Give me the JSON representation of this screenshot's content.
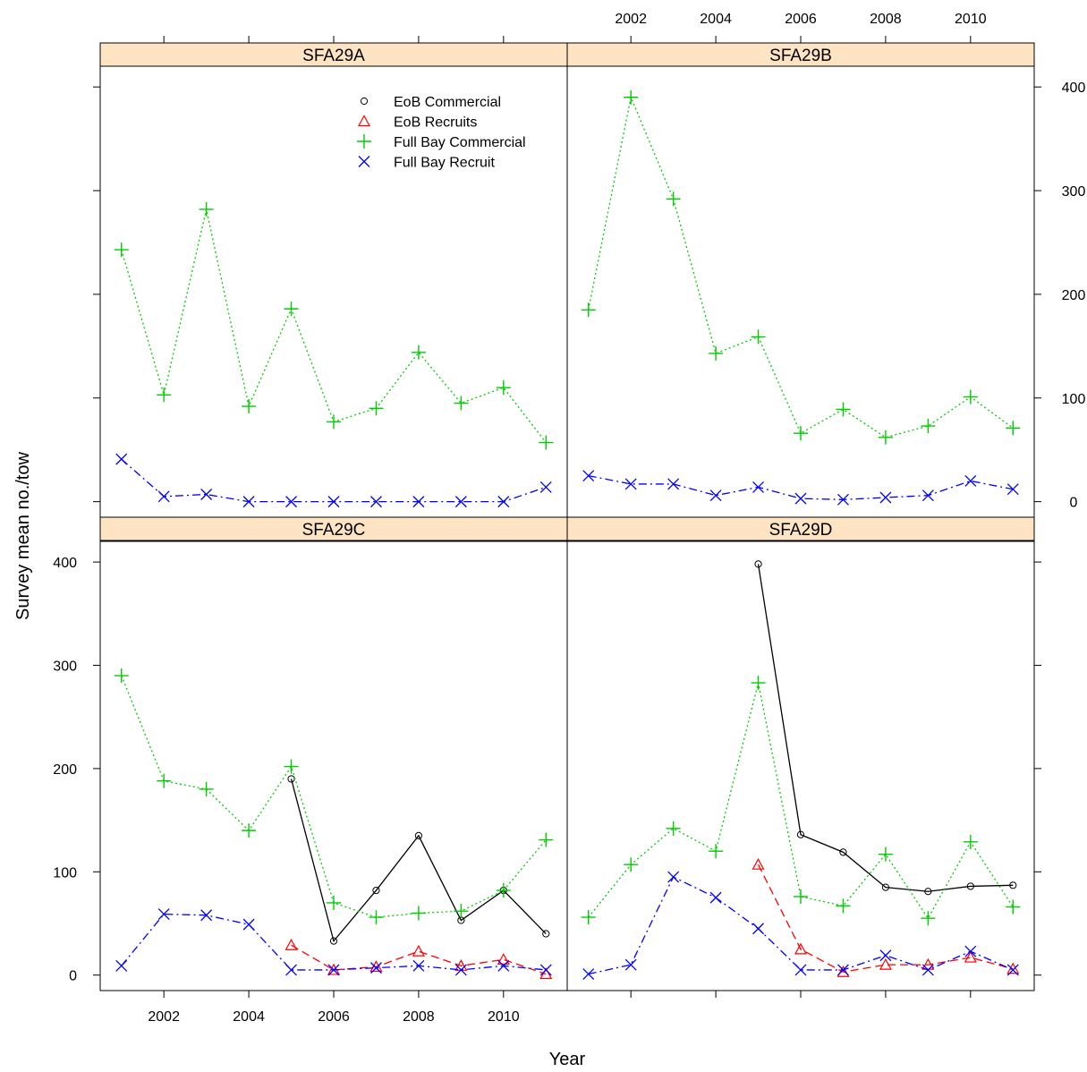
{
  "chart_data": {
    "type": "line",
    "layout": "lattice 2x2",
    "xlabel": "Year",
    "ylabel": "Survey mean no./tow",
    "xlim": [
      2000.5,
      2011.5
    ],
    "ylim": [
      -15,
      420
    ],
    "x_ticks": [
      2002,
      2004,
      2006,
      2008,
      2010
    ],
    "y_ticks": [
      0,
      100,
      200,
      300,
      400
    ],
    "grid": false,
    "strip_color": "#ffe4c4",
    "legend": {
      "placement": "inside top of SFA29A panel",
      "entries": [
        {
          "key": "eob_com",
          "label": "EoB Commercial",
          "color": "#000000",
          "marker": "circle",
          "line": "solid"
        },
        {
          "key": "eob_rec",
          "label": "EoB Recruits",
          "color": "#ff0000",
          "marker": "triangle",
          "line": "dashed"
        },
        {
          "key": "fb_com",
          "label": "Full Bay Commercial",
          "color": "#00cc00",
          "marker": "plus",
          "line": "dotted"
        },
        {
          "key": "fb_rec",
          "label": "Full Bay Recruit",
          "color": "#0000ff",
          "marker": "x",
          "line": "dotdash"
        }
      ]
    },
    "panels": [
      {
        "id": "SFA29A",
        "title": "SFA29A",
        "series": {
          "eob_com": {
            "x": [],
            "y": []
          },
          "eob_rec": {
            "x": [],
            "y": []
          },
          "fb_com": {
            "x": [
              2001,
              2002,
              2003,
              2004,
              2005,
              2006,
              2007,
              2008,
              2009,
              2010,
              2011
            ],
            "y": [
              243,
              103,
              282,
              92,
              186,
              77,
              90,
              144,
              95,
              110,
              57
            ]
          },
          "fb_rec": {
            "x": [
              2001,
              2002,
              2003,
              2004,
              2005,
              2006,
              2007,
              2008,
              2009,
              2010,
              2011
            ],
            "y": [
              41,
              5,
              7,
              0,
              0,
              0,
              0,
              0,
              0,
              0,
              14
            ]
          }
        }
      },
      {
        "id": "SFA29B",
        "title": "SFA29B",
        "series": {
          "eob_com": {
            "x": [],
            "y": []
          },
          "eob_rec": {
            "x": [],
            "y": []
          },
          "fb_com": {
            "x": [
              2001,
              2002,
              2003,
              2004,
              2005,
              2006,
              2007,
              2008,
              2009,
              2010,
              2011
            ],
            "y": [
              185,
              390,
              292,
              143,
              159,
              66,
              89,
              62,
              73,
              101,
              71
            ]
          },
          "fb_rec": {
            "x": [
              2001,
              2002,
              2003,
              2004,
              2005,
              2006,
              2007,
              2008,
              2009,
              2010,
              2011
            ],
            "y": [
              25,
              17,
              17,
              6,
              14,
              3,
              2,
              4,
              6,
              20,
              12
            ]
          }
        }
      },
      {
        "id": "SFA29C",
        "title": "SFA29C",
        "series": {
          "eob_com": {
            "x": [
              2005,
              2006,
              2007,
              2008,
              2009,
              2010,
              2011
            ],
            "y": [
              190,
              33,
              82,
              135,
              53,
              82,
              40
            ]
          },
          "eob_rec": {
            "x": [
              2005,
              2006,
              2007,
              2008,
              2009,
              2010,
              2011
            ],
            "y": [
              29,
              5,
              8,
              23,
              9,
              15,
              1
            ]
          },
          "fb_com": {
            "x": [
              2001,
              2002,
              2003,
              2004,
              2005,
              2006,
              2007,
              2008,
              2009,
              2010,
              2011
            ],
            "y": [
              290,
              188,
              180,
              140,
              202,
              70,
              56,
              60,
              62,
              82,
              131
            ]
          },
          "fb_rec": {
            "x": [
              2001,
              2002,
              2003,
              2004,
              2005,
              2006,
              2007,
              2008,
              2009,
              2010,
              2011
            ],
            "y": [
              9,
              59,
              58,
              49,
              5,
              5,
              7,
              9,
              5,
              9,
              5
            ]
          }
        }
      },
      {
        "id": "SFA29D",
        "title": "SFA29D",
        "series": {
          "eob_com": {
            "x": [
              2005,
              2006,
              2007,
              2008,
              2009,
              2010,
              2011
            ],
            "y": [
              398,
              136,
              119,
              85,
              81,
              86,
              87
            ]
          },
          "eob_rec": {
            "x": [
              2005,
              2006,
              2007,
              2008,
              2009,
              2010,
              2011
            ],
            "y": [
              107,
              25,
              3,
              10,
              10,
              17,
              6
            ]
          },
          "fb_com": {
            "x": [
              2001,
              2002,
              2003,
              2004,
              2005,
              2006,
              2007,
              2008,
              2009,
              2010,
              2011
            ],
            "y": [
              56,
              107,
              142,
              120,
              283,
              76,
              67,
              117,
              55,
              129,
              66
            ]
          },
          "fb_rec": {
            "x": [
              2001,
              2002,
              2003,
              2004,
              2005,
              2006,
              2007,
              2008,
              2009,
              2010,
              2011
            ],
            "y": [
              1,
              10,
              95,
              75,
              45,
              5,
              5,
              19,
              5,
              23,
              5
            ]
          }
        }
      }
    ]
  }
}
